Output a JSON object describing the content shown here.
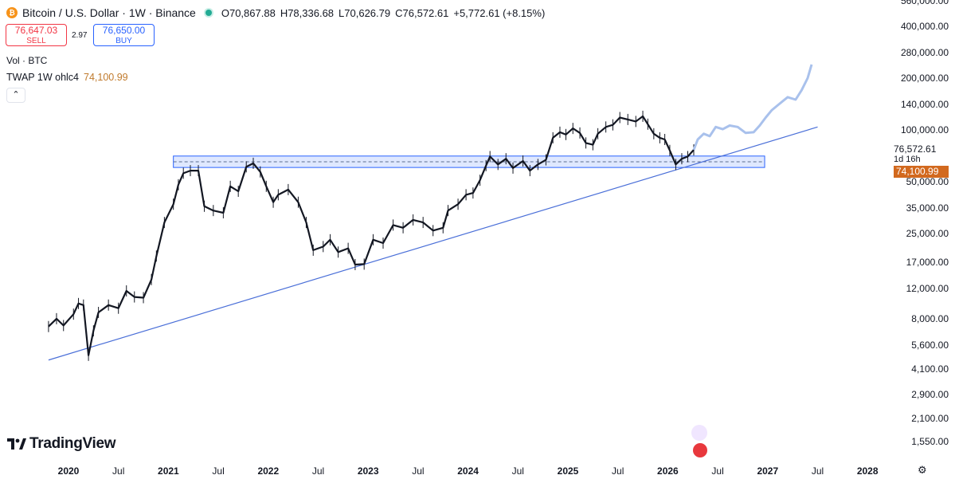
{
  "header": {
    "symbol": "Bitcoin / U.S. Dollar · 1W · Binance",
    "open": "O70,867.88",
    "high": "H78,336.68",
    "low": "L70,626.79",
    "close": "C76,572.61",
    "change": "+5,772.61 (+8.15%)",
    "coin_icon": "bitcoin-icon",
    "market_dot_color": "#22ab94"
  },
  "trade": {
    "sell_price": "76,647.03",
    "sell_label": "SELL",
    "spread": "2.97",
    "buy_price": "76,650.00",
    "buy_label": "BUY"
  },
  "indicators": {
    "vol": "Vol · BTC",
    "twap_label": "TWAP 1W ohlc4",
    "twap_value": "74,100.99",
    "collapse_icon": "chevron-up-icon"
  },
  "price_tags": {
    "last_price": "76,572.61",
    "countdown": "1d 16h",
    "twap": "74,100.99",
    "twap_color": "#d2691e"
  },
  "brand": "TradingView",
  "chart_data": {
    "type": "line",
    "scale": "log",
    "y_tick_labels": [
      "560,000.00",
      "400,000.00",
      "280,000.00",
      "200,000.00",
      "140,000.00",
      "100,000.00",
      "50,000.00",
      "35,000.00",
      "25,000.00",
      "17,000.00",
      "12,000.00",
      "8,000.00",
      "5,600.00",
      "4,100.00",
      "2,900.00",
      "2,100.00",
      "1,550.00"
    ],
    "y_ticks": [
      560000,
      400000,
      280000,
      200000,
      140000,
      100000,
      50000,
      35000,
      25000,
      17000,
      12000,
      8000,
      5600,
      4100,
      2900,
      2100,
      1550
    ],
    "x_tick_labels": [
      "2020",
      "Jul",
      "2021",
      "Jul",
      "2022",
      "Jul",
      "2023",
      "Jul",
      "2024",
      "Jul",
      "2025",
      "Jul",
      "2026",
      "Jul",
      "2027",
      "Jul",
      "2028"
    ],
    "x_tick_years": [
      2020,
      2020.5,
      2021,
      2021.5,
      2022,
      2022.5,
      2023,
      2023.5,
      2024,
      2024.5,
      2025,
      2025.5,
      2026,
      2026.5,
      2027,
      2027.5,
      2028
    ],
    "price_series": [
      [
        2019.8,
        7200
      ],
      [
        2019.88,
        8000
      ],
      [
        2019.95,
        7300
      ],
      [
        2020.05,
        8500
      ],
      [
        2020.1,
        9800
      ],
      [
        2020.15,
        9600
      ],
      [
        2020.2,
        4900
      ],
      [
        2020.25,
        6800
      ],
      [
        2020.3,
        8700
      ],
      [
        2020.4,
        9600
      ],
      [
        2020.5,
        9200
      ],
      [
        2020.58,
        11600
      ],
      [
        2020.66,
        10700
      ],
      [
        2020.75,
        10600
      ],
      [
        2020.83,
        13500
      ],
      [
        2020.88,
        18500
      ],
      [
        2020.96,
        29000
      ],
      [
        2021.05,
        37000
      ],
      [
        2021.1,
        48000
      ],
      [
        2021.15,
        56000
      ],
      [
        2021.22,
        58000
      ],
      [
        2021.3,
        58000
      ],
      [
        2021.36,
        36000
      ],
      [
        2021.45,
        34000
      ],
      [
        2021.55,
        33000
      ],
      [
        2021.62,
        47000
      ],
      [
        2021.7,
        44000
      ],
      [
        2021.78,
        61000
      ],
      [
        2021.85,
        64000
      ],
      [
        2021.92,
        57000
      ],
      [
        2021.98,
        47000
      ],
      [
        2022.05,
        38000
      ],
      [
        2022.1,
        42000
      ],
      [
        2022.2,
        45000
      ],
      [
        2022.3,
        38000
      ],
      [
        2022.38,
        29000
      ],
      [
        2022.45,
        20000
      ],
      [
        2022.55,
        21000
      ],
      [
        2022.62,
        23000
      ],
      [
        2022.7,
        19500
      ],
      [
        2022.8,
        20500
      ],
      [
        2022.87,
        16500
      ],
      [
        2022.96,
        16600
      ],
      [
        2023.05,
        23000
      ],
      [
        2023.15,
        22000
      ],
      [
        2023.25,
        28000
      ],
      [
        2023.35,
        27000
      ],
      [
        2023.45,
        30000
      ],
      [
        2023.55,
        29000
      ],
      [
        2023.65,
        26000
      ],
      [
        2023.75,
        27000
      ],
      [
        2023.8,
        34000
      ],
      [
        2023.9,
        37000
      ],
      [
        2023.98,
        42000
      ],
      [
        2024.05,
        43000
      ],
      [
        2024.12,
        51000
      ],
      [
        2024.18,
        62000
      ],
      [
        2024.22,
        70000
      ],
      [
        2024.3,
        63000
      ],
      [
        2024.38,
        68000
      ],
      [
        2024.45,
        60000
      ],
      [
        2024.55,
        66000
      ],
      [
        2024.62,
        58000
      ],
      [
        2024.7,
        63000
      ],
      [
        2024.78,
        67000
      ],
      [
        2024.85,
        90000
      ],
      [
        2024.92,
        97000
      ],
      [
        2024.98,
        94000
      ],
      [
        2025.05,
        102000
      ],
      [
        2025.12,
        96000
      ],
      [
        2025.18,
        84000
      ],
      [
        2025.25,
        82000
      ],
      [
        2025.3,
        95000
      ],
      [
        2025.38,
        104000
      ],
      [
        2025.45,
        107000
      ],
      [
        2025.52,
        118000
      ],
      [
        2025.6,
        115000
      ],
      [
        2025.68,
        112000
      ],
      [
        2025.75,
        120000
      ],
      [
        2025.8,
        108000
      ],
      [
        2025.86,
        95000
      ],
      [
        2025.92,
        90000
      ],
      [
        2025.97,
        88000
      ],
      [
        2026.02,
        76000
      ],
      [
        2026.08,
        63000
      ],
      [
        2026.14,
        68000
      ],
      [
        2026.2,
        70000
      ],
      [
        2026.26,
        76572
      ]
    ],
    "projection_series": [
      [
        2026.26,
        76572
      ],
      [
        2026.3,
        88000
      ],
      [
        2026.36,
        95000
      ],
      [
        2026.42,
        92000
      ],
      [
        2026.48,
        104000
      ],
      [
        2026.55,
        101000
      ],
      [
        2026.62,
        106000
      ],
      [
        2026.7,
        104000
      ],
      [
        2026.78,
        96000
      ],
      [
        2026.86,
        97000
      ],
      [
        2026.92,
        106000
      ],
      [
        2026.98,
        118000
      ],
      [
        2027.04,
        130000
      ],
      [
        2027.12,
        142000
      ],
      [
        2027.2,
        155000
      ],
      [
        2027.28,
        150000
      ],
      [
        2027.34,
        170000
      ],
      [
        2027.4,
        200000
      ],
      [
        2027.44,
        240000
      ]
    ],
    "trendline": [
      [
        2019.8,
        4600
      ],
      [
        2027.5,
        104000
      ]
    ],
    "support_zone": {
      "low": 60500,
      "high": 70500,
      "from": 2021.05,
      "to": 2026.97
    },
    "title": "Bitcoin / U.S. Dollar · 1W · Binance",
    "grid": false,
    "legend": "top-left"
  }
}
